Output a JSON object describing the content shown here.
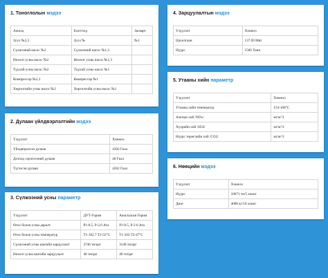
{
  "card1": {
    "num": "1.",
    "title_main": "Тоноглолын",
    "title_hl": "мэдээ",
    "headers": [
      "Ажилд",
      "Бэлтгэлд",
      "Засварт"
    ],
    "rows": [
      [
        "Зуух №2,3",
        "Зуух №",
        "№1"
      ],
      [
        "Сүлжээний насос №2",
        "Сүлжээний насос №1,3",
        ""
      ],
      [
        "Нөхөлт усны насос №2",
        "Нөхөлт усны насос №1,3",
        ""
      ],
      [
        "Түүхий усны насос №2",
        "Түүхий усны насос №1",
        ""
      ],
      [
        "Компрессор №2,3",
        "Компрессор №1",
        ""
      ],
      [
        "Хөргөлтийн усны насос №2",
        "Хөргөлтийн усны насос №1",
        ""
      ]
    ]
  },
  "card2": {
    "num": "2.",
    "title_main": "Дулаан үйлдвэрлэлтийн",
    "title_hl": "мэдээ",
    "headers": [
      "Үзүүлэлт",
      "Хэмжээ"
    ],
    "rows": [
      [
        "Үйлдвэрлэсэн дулаан",
        "4302 Гкал"
      ],
      [
        "Дотоод хэрэглээний дулаан",
        "40 Гкал"
      ],
      [
        "Түгээсэн дулаан",
        "4262 Гкал"
      ]
    ]
  },
  "card3": {
    "num": "3.",
    "title_main": "Сүлжээний усны",
    "title_hl": "параметр",
    "headers": [
      "Үзүүлэлт",
      "ДУТ-Горим",
      "Ажилласан Горим"
    ],
    "rows": [
      [
        "Өгөх болон усны даралт",
        "P1-8.5, P-2.0 Ата",
        "P1-8.5, P-2.0 Ата"
      ],
      [
        "Өгөх болон усны температур",
        "T1-102.7 T2-55°C",
        "T1-103 T2-47°C"
      ],
      [
        "Сүлжээний усны шигийн зарцуулалт",
        "3746 тн/цаг",
        "3148 тн/цаг"
      ],
      [
        "Нөхөлт усны шигийн зарцуулалт",
        "40 тн/цаг",
        "40 тн/цаг"
      ]
    ]
  },
  "card4": {
    "num": "4.",
    "title_main": "Зарцуулалтын",
    "title_hl": "мэдээ",
    "headers": [
      "Үзүүлэлт",
      "Хэмжээ"
    ],
    "rows": [
      [
        "Цахилгаан",
        "137.69 Мвт"
      ],
      [
        "Нүүрс",
        "1560 Тонн"
      ]
    ]
  },
  "card5": {
    "num": "5.",
    "title_main": "Утааны хийн",
    "title_hl": "параметр",
    "headers": [
      "Үзүүлэлт",
      "Хэмжээ"
    ],
    "rows": [
      [
        "Утааны хийн температур",
        "154-168°C"
      ],
      [
        "Азотын хий /NOx/",
        "мг/м^3"
      ],
      [
        "Хүхрийн хий /SO2/",
        "мг/м^3"
      ],
      [
        "Нүүрс төрөгчийн хий /CO2/",
        "мг/м^3"
      ]
    ]
  },
  "card6": {
    "num": "6.",
    "title_main": "Нөөцийн",
    "title_hl": "мэдээ",
    "headers": [
      "Үзүүлэлт",
      "Хэмжээ"
    ],
    "rows": [
      [
        "Нүүрс",
        "10671 тн/5 хоног"
      ],
      [
        "Дизе",
        "4000 кг/10 хоног"
      ]
    ]
  }
}
